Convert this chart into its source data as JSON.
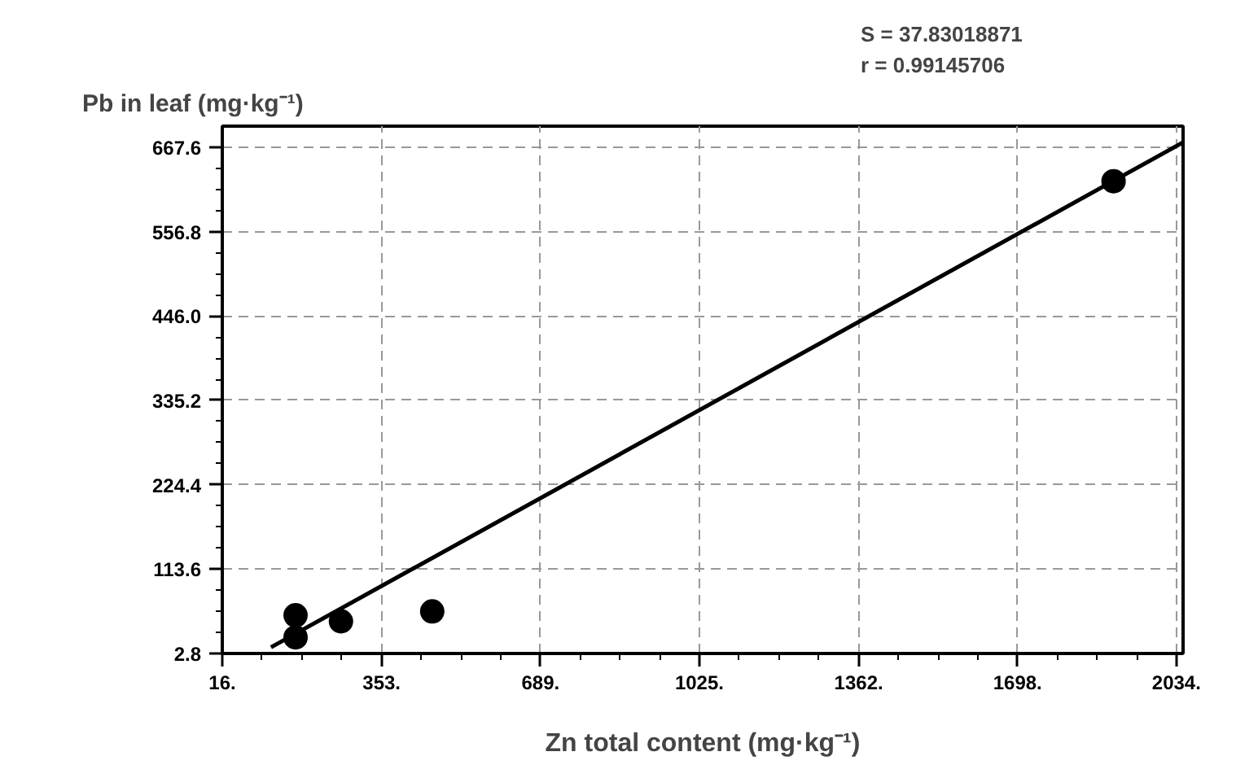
{
  "chart_data": {
    "type": "scatter",
    "xlabel": "Zn total content (mg·kg⁻¹)",
    "ylabel": "Pb in leaf (mg·kg⁻¹)",
    "annotations": [
      "S = 37.83018871",
      "r = 0.99145706"
    ],
    "xlim": [
      16,
      2048
    ],
    "ylim": [
      2.8,
      695.3
    ],
    "xticks": [
      {
        "value": 16,
        "label": "16."
      },
      {
        "value": 353,
        "label": "353."
      },
      {
        "value": 689,
        "label": "689."
      },
      {
        "value": 1025,
        "label": "1025."
      },
      {
        "value": 1362,
        "label": "1362."
      },
      {
        "value": 1698,
        "label": "1698."
      },
      {
        "value": 2034,
        "label": "2034."
      }
    ],
    "yticks": [
      2.8,
      113.6,
      224.4,
      335.2,
      {
        "value": 446.0,
        "label": "446.0"
      },
      556.8,
      667.6
    ],
    "grid": true,
    "marker": "circle",
    "series": [
      {
        "color": "#000000",
        "x": [
          171,
          171,
          267,
          460,
          1901
        ],
        "values": [
          53,
          24,
          45,
          58,
          623
        ]
      },
      {
        "type": "line",
        "color": "#000000",
        "line_style": "solid",
        "marker": "none",
        "x": [
          119,
          2048
        ],
        "values": [
          11,
          674
        ]
      }
    ]
  }
}
